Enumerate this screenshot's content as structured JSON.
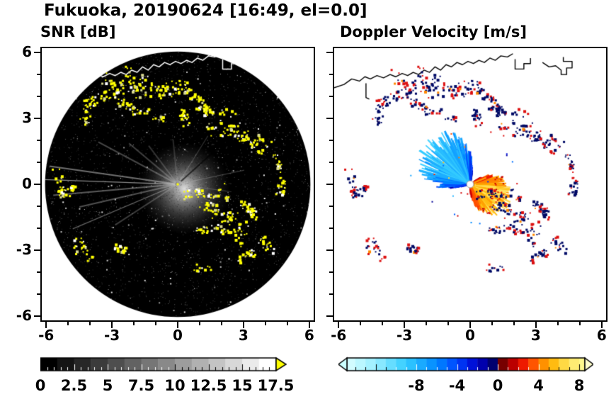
{
  "figure_title": "Fukuoka, 20190624 [16:49, el=0.0]",
  "station": "Fukuoka",
  "date": "20190624",
  "time": "16:49",
  "elevation": "0.0",
  "chart_data": [
    {
      "type": "heatmap",
      "title": "SNR [dB]",
      "description": "Radar PPI scan of signal-to-noise ratio: black circular scan disk with yellow strong-echo patches, gray ground-clutter fan with radial spokes around the radar at center, faint speckle noise, white coastline overlay along the top",
      "xlim": [
        -6.2,
        6.2
      ],
      "ylim": [
        -6.2,
        6.2
      ],
      "xtick_values": [
        -6,
        -3,
        0,
        3,
        6
      ],
      "xtick_labels": [
        "-6",
        "-3",
        "0",
        "3",
        "6"
      ],
      "ytick_values": [
        6,
        3,
        0,
        -3,
        -6
      ],
      "ytick_labels": [
        "6",
        "3",
        "0",
        "-3",
        "-6"
      ],
      "minor_tick_interval": 1,
      "scan_radius": 6.05,
      "grid": false,
      "colorbar": {
        "min": 0,
        "max": 17.5,
        "tick_values": [
          0,
          2.5,
          5,
          7.5,
          10,
          12.5,
          15,
          17.5
        ],
        "tick_labels": [
          "0",
          "2.5",
          "5",
          "7.5",
          "10",
          "12.5",
          "15",
          "17.5"
        ],
        "colormap": "grayscale",
        "stops": [
          [
            0,
            "#000000"
          ],
          [
            17.5,
            "#ffffff"
          ]
        ],
        "over_color": "#ffff00"
      }
    },
    {
      "type": "heatmap",
      "title": "Doppler Velocity [m/s]",
      "description": "Radar PPI Doppler velocity: white background, cyan-to-blue fan (flow toward radar) northwest of center, orange-to-yellow fan (flow away) southeast of center, scattered dark-navy echo patches rimmed with red, black coastline along the top",
      "xlim": [
        -6.2,
        6.2
      ],
      "ylim": [
        -6.2,
        6.2
      ],
      "xtick_values": [
        -6,
        -3,
        0,
        3,
        6
      ],
      "xtick_labels": [
        "-6",
        "-3",
        "0",
        "3",
        "6"
      ],
      "minor_tick_interval": 1,
      "grid": false,
      "colorbar": {
        "min": -15,
        "max": 9,
        "tick_values": [
          -8,
          -4,
          0,
          4,
          8
        ],
        "tick_labels": [
          "-8",
          "-4",
          "0",
          "4",
          "8"
        ],
        "colormap": "cyan-blue-navy / darkred-red-orange-yellow",
        "stops_negative": [
          [
            -15,
            "#ddffff"
          ],
          [
            -12,
            "#99eeff"
          ],
          [
            -9,
            "#33ccff"
          ],
          [
            -6,
            "#0088ff"
          ],
          [
            -4,
            "#0044ff"
          ],
          [
            -2,
            "#0000cc"
          ],
          [
            0,
            "#000050"
          ]
        ],
        "stops_positive": [
          [
            0,
            "#550000"
          ],
          [
            1,
            "#990000"
          ],
          [
            2,
            "#dd0000"
          ],
          [
            3,
            "#ff3300"
          ],
          [
            4,
            "#ff7700"
          ],
          [
            5,
            "#ffaa00"
          ],
          [
            6,
            "#ffcc22"
          ],
          [
            7,
            "#ffe566"
          ],
          [
            9,
            "#ffff99"
          ]
        ],
        "under_color": "#ccffff",
        "over_color": "#ffffcc"
      }
    }
  ],
  "overlays": {
    "coastline_main": [
      [
        -6.2,
        4.4
      ],
      [
        -5.75,
        4.55
      ],
      [
        -5.4,
        4.8
      ],
      [
        -5.05,
        4.7
      ],
      [
        -4.8,
        4.9
      ],
      [
        -4.55,
        4.8
      ],
      [
        -4.25,
        4.95
      ],
      [
        -3.95,
        4.85
      ],
      [
        -3.65,
        5.0
      ],
      [
        -3.4,
        4.9
      ],
      [
        -3.1,
        5.05
      ],
      [
        -2.85,
        4.95
      ],
      [
        -2.6,
        5.1
      ],
      [
        -2.35,
        5.0
      ],
      [
        -2.1,
        5.2
      ],
      [
        -1.85,
        5.1
      ],
      [
        -1.6,
        5.35
      ],
      [
        -1.35,
        5.2
      ],
      [
        -1.1,
        5.45
      ],
      [
        -0.85,
        5.35
      ],
      [
        -0.6,
        5.55
      ],
      [
        -0.35,
        5.45
      ],
      [
        -0.1,
        5.6
      ],
      [
        0.15,
        5.5
      ],
      [
        0.4,
        5.65
      ],
      [
        0.65,
        5.55
      ],
      [
        0.9,
        5.75
      ],
      [
        1.15,
        5.65
      ],
      [
        1.4,
        5.85
      ],
      [
        1.7,
        5.8
      ],
      [
        1.95,
        5.95
      ]
    ],
    "coastline_inlet": [
      [
        -4.75,
        4.6
      ],
      [
        -4.75,
        3.95
      ],
      [
        -4.6,
        3.88
      ]
    ],
    "coastline_port": [
      [
        2.05,
        5.7
      ],
      [
        2.05,
        5.25
      ],
      [
        2.45,
        5.25
      ],
      [
        2.45,
        5.5
      ],
      [
        2.75,
        5.5
      ],
      [
        2.75,
        5.75
      ]
    ],
    "coastline_breakwater": [
      [
        3.3,
        5.55
      ],
      [
        3.6,
        5.35
      ],
      [
        3.9,
        5.4
      ],
      [
        4.15,
        5.2
      ],
      [
        4.15,
        5.0
      ],
      [
        4.4,
        5.0
      ],
      [
        4.4,
        5.3
      ],
      [
        4.65,
        5.3
      ],
      [
        4.65,
        5.6
      ],
      [
        4.25,
        5.6
      ],
      [
        4.25,
        5.8
      ]
    ],
    "echo_clusters": [
      [
        -4.15,
        3.25,
        0.9
      ],
      [
        -3.7,
        3.85,
        0.9
      ],
      [
        -3.2,
        4.55,
        1.0
      ],
      [
        -2.7,
        4.1,
        0.9
      ],
      [
        -2.45,
        4.75,
        0.9
      ],
      [
        -2.0,
        4.35,
        1.0
      ],
      [
        -1.6,
        4.6,
        0.9
      ],
      [
        -1.25,
        4.15,
        0.9
      ],
      [
        -0.8,
        4.45,
        1.0
      ],
      [
        -0.4,
        4.2,
        0.8
      ],
      [
        0.1,
        4.5,
        1.0
      ],
      [
        0.55,
        4.15,
        0.9
      ],
      [
        1.0,
        3.8,
        0.9
      ],
      [
        -2.1,
        3.4,
        0.8
      ],
      [
        -1.1,
        3.15,
        0.8
      ],
      [
        0.3,
        3.1,
        0.7
      ],
      [
        1.3,
        3.35,
        0.9
      ],
      [
        1.9,
        2.85,
        1.0
      ],
      [
        2.4,
        2.5,
        1.0
      ],
      [
        2.95,
        2.15,
        0.8
      ],
      [
        3.6,
        1.9,
        0.7
      ],
      [
        3.95,
        1.75,
        0.6
      ],
      [
        -5.35,
        0.15,
        0.9
      ],
      [
        -5.0,
        -0.35,
        0.8
      ],
      [
        -4.55,
        -2.85,
        0.9
      ],
      [
        -4.15,
        -3.1,
        0.8
      ],
      [
        -2.6,
        -2.95,
        0.6
      ],
      [
        0.7,
        -0.45,
        0.8
      ],
      [
        1.15,
        -0.8,
        1.0
      ],
      [
        1.6,
        -1.1,
        1.1
      ],
      [
        2.05,
        -1.5,
        1.1
      ],
      [
        2.5,
        -1.9,
        1.1
      ],
      [
        2.95,
        -2.3,
        1.0
      ],
      [
        1.45,
        -2.05,
        0.8
      ],
      [
        1.9,
        -0.35,
        0.8
      ],
      [
        2.75,
        -0.85,
        0.9
      ],
      [
        3.4,
        -1.25,
        0.8
      ],
      [
        4.55,
        0.95,
        0.7
      ],
      [
        4.75,
        -0.1,
        0.7
      ],
      [
        4.1,
        -2.8,
        0.8
      ],
      [
        3.15,
        -3.35,
        0.8
      ],
      [
        1.15,
        -3.85,
        0.7
      ]
    ],
    "velocity_fans": {
      "negative": {
        "angle_start": 82,
        "angle_end": 192,
        "max_radius": 2.3
      },
      "positive": {
        "angle_start": -85,
        "angle_end": 32,
        "max_radius": 1.6
      }
    }
  },
  "colors": {
    "snr_echo": "#ffff00",
    "snr_background": "#000000",
    "clutter_gray": "#b9b9b9",
    "coast_left": "#ffffff",
    "coast_right": "#000000",
    "echo_patch_navy": "#000a66",
    "echo_patch_red": "#dd1111"
  }
}
